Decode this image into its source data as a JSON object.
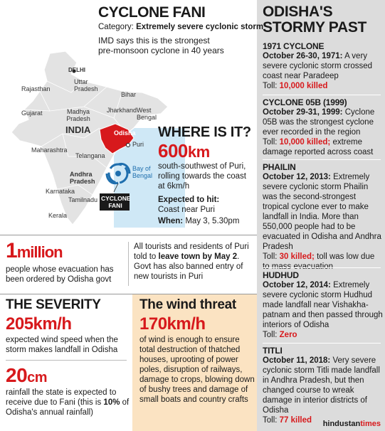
{
  "header": {
    "title": "CYCLONE FANI",
    "category_label": "Category:",
    "category_value": "Extremely severe cyclonic storm",
    "imd_line1": "IMD says this is the strongest",
    "imd_line2": "pre-monsoon cyclone in 40 years"
  },
  "map": {
    "labels": {
      "delhi": "DELHI",
      "rajasthan": "Rajasthan",
      "uttar_pradesh": "Uttar Pradesh",
      "bihar": "Bihar",
      "gujarat": "Gujarat",
      "madhya_pradesh": "Madhya Pradesh",
      "jharkhand": "Jharkhand",
      "west_bengal": "West Bengal",
      "india": "INDIA",
      "odisha": "Odisha",
      "puri": "Puri",
      "maharashtra": "Maharashtra",
      "telangana": "Telangana",
      "bay_of_bengal": "Bay of Bengal",
      "andhra_pradesh": "Andhra Pradesh",
      "karnataka": "Karnataka",
      "tamilnadu": "Tamilnadu",
      "kerala": "Kerala",
      "cyclone_fani": "CYCLONE FANI"
    },
    "colors": {
      "land": "#e3e3e3",
      "odisha": "#d7191c",
      "sea": "#cfe8f6",
      "cyclone": "#1f6fae"
    }
  },
  "where": {
    "title": "WHERE IS IT?",
    "distance_value": "600",
    "distance_unit": "km",
    "desc": "south-southwest of Puri, rolling towards the coast at 6km/h",
    "expected_label": "Expected to hit:",
    "expected_value": "Coast near Puri",
    "when_label": "When:",
    "when_value": "May 3, 5.30pm"
  },
  "million": {
    "num": "1",
    "unit": "million",
    "desc": "people whose evacuation has been ordered by Odisha govt"
  },
  "tourists": {
    "pre": "All tourists and residents of Puri told to ",
    "bold": "leave town by May 2",
    "post": ". Govt has also banned entry of new tourists in Puri"
  },
  "severity": {
    "title": "THE SEVERITY",
    "speed": "205km/h",
    "speed_desc": "expected wind speed when the storm makes landfall in Odisha",
    "rain_value": "20",
    "rain_unit": "cm",
    "rain_desc_pre": "rainfall the state is expected to receive due to Fani (this is ",
    "rain_desc_bold": "10%",
    "rain_desc_post": " of Odisha's annual rainfall)"
  },
  "wind": {
    "title": "The wind threat",
    "speed": "170km/h",
    "desc": "of wind is enough to ensure total destruction of thatched houses, uprooting of power poles, disruption of railways, damage to crops, blowing down of bushy trees and damage of small boats and country crafts"
  },
  "past": {
    "title_line1": "ODISHA'S",
    "title_line2": "STORMY PAST",
    "storms": [
      {
        "name": "1971 CYCLONE",
        "date": "October 26-30, 1971:",
        "desc": " A very severe cyclonic storm crossed coast near Paradeep",
        "toll_label": "Toll: ",
        "toll_value": "10,000 killed",
        "toll_rest": ""
      },
      {
        "name": "CYCLONE 05B (1999)",
        "date": "October 29-31, 1999:",
        "desc": " Cyclone 05B was the strongest cyclone ever recorded in the region",
        "toll_label": "Toll: ",
        "toll_value": "10,000 killed;",
        "toll_rest": " extreme damage reported across coast"
      },
      {
        "name": "PHAILIN",
        "date": "October 12, 2013:",
        "desc": " Extremely severe cyclonic storm Phailin was the second-strongest tropical cyclone ever to make landfall in India. More than 550,000 people had to be evacuated in Odisha and Andhra Pradesh",
        "toll_label": "Toll: ",
        "toll_value": "30 killed;",
        "toll_rest": " toll was low due to mass evacuation"
      },
      {
        "name": "HUDHUD",
        "date": "October 12, 2014:",
        "desc": " Extremely severe cyclonic storm Hudhud made landfall near Vishakha-patnam and then passed through interiors of Odisha",
        "toll_label": "Toll: ",
        "toll_value": "Zero",
        "toll_rest": ""
      },
      {
        "name": "TITLI",
        "date": "October 11, 2018:",
        "desc": " Very severe cyclonic storm Titli made landfall in Andhra Pradesh, but then changed course to wreak damage in interior districts of Odisha",
        "toll_label": "Toll: ",
        "toll_value": "77 killed",
        "toll_rest": ""
      }
    ]
  },
  "footer": {
    "brand_a": "hindustan",
    "brand_b": "times"
  },
  "colors": {
    "accent": "#d7191c",
    "panel_grey": "#dcdcdc",
    "panel_peach": "#fbe3c2"
  }
}
